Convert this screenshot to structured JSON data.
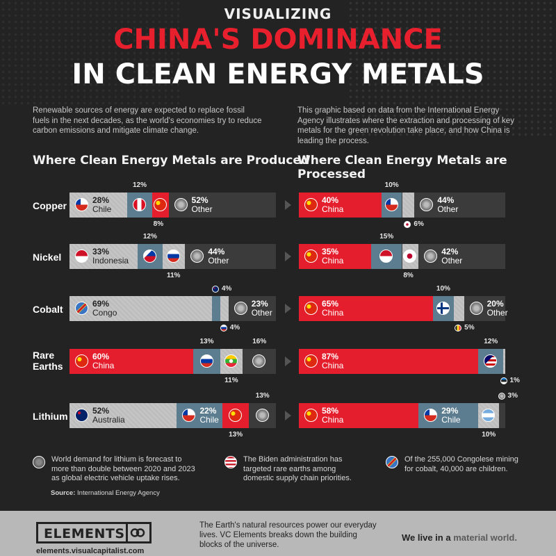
{
  "header": {
    "line1": "VISUALIZING",
    "line2": "CHINA'S DOMINANCE",
    "line3": "IN CLEAN ENERGY METALS"
  },
  "intro": {
    "left": "Renewable sources of energy are expected to replace fossil fuels in the next decades, as the world's economies try to reduce carbon emissions and mitigate climate change.",
    "right": "This graphic based on data from the International Energy Agency illustrates where the extraction and processing of key metals for the green revolution take place, and how China is leading the process."
  },
  "sections": {
    "produced": "Where Clean Energy Metals are Produced",
    "processed": "Where Clean Energy Metals are Processed"
  },
  "chart_data": {
    "type": "bar",
    "unit": "%",
    "categories": [
      "Copper",
      "Nickel",
      "Cobalt",
      "Rare Earths",
      "Lithium"
    ],
    "production": [
      [
        {
          "country": "Chile",
          "share": 28
        },
        {
          "country": "Peru",
          "share": 12
        },
        {
          "country": "China",
          "share": 8
        },
        {
          "country": "Other",
          "share": 52
        }
      ],
      [
        {
          "country": "Indonesia",
          "share": 33
        },
        {
          "country": "Philippines",
          "share": 12
        },
        {
          "country": "Russia",
          "share": 11
        },
        {
          "country": "Other",
          "share": 44
        }
      ],
      [
        {
          "country": "Congo",
          "share": 69
        },
        {
          "country": "Australia",
          "share": 4
        },
        {
          "country": "Russia",
          "share": 4
        },
        {
          "country": "Other",
          "share": 23
        }
      ],
      [
        {
          "country": "China",
          "share": 60
        },
        {
          "country": "Russia",
          "share": 13
        },
        {
          "country": "Myanmar",
          "share": 11
        },
        {
          "country": "Other",
          "share": 16
        }
      ],
      [
        {
          "country": "Australia",
          "share": 52
        },
        {
          "country": "Chile",
          "share": 22
        },
        {
          "country": "China",
          "share": 13
        },
        {
          "country": "Other",
          "share": 13
        }
      ]
    ],
    "processing": [
      [
        {
          "country": "China",
          "share": 40
        },
        {
          "country": "Chile",
          "share": 10
        },
        {
          "country": "Japan",
          "share": 6
        },
        {
          "country": "Other",
          "share": 44
        }
      ],
      [
        {
          "country": "China",
          "share": 35
        },
        {
          "country": "Indonesia",
          "share": 15
        },
        {
          "country": "Japan",
          "share": 8
        },
        {
          "country": "Other",
          "share": 42
        }
      ],
      [
        {
          "country": "China",
          "share": 65
        },
        {
          "country": "Finland",
          "share": 10
        },
        {
          "country": "Belgium",
          "share": 5
        },
        {
          "country": "Other",
          "share": 20
        }
      ],
      [
        {
          "country": "China",
          "share": 87
        },
        {
          "country": "Malaysia",
          "share": 12
        },
        {
          "country": "Estonia",
          "share": 1
        }
      ],
      [
        {
          "country": "China",
          "share": 58
        },
        {
          "country": "Chile",
          "share": 29
        },
        {
          "country": "Argentina",
          "share": 10
        },
        {
          "country": "Other",
          "share": 3
        }
      ]
    ]
  },
  "metal_labels": [
    "Copper",
    "Nickel",
    "Cobalt",
    "Rare\nEarths",
    "Lithium"
  ],
  "colors": {
    "china": "#e41e2c",
    "stone": "#c4c4c4",
    "slate": "#5c7d8f",
    "other": "#454545",
    "background": "#232323"
  },
  "notes": [
    {
      "icon": "globe-icon",
      "text": "World demand for lithium is forecast to more than double between 2020 and 2023 as global electric vehicle uptake rises."
    },
    {
      "icon": "usa-flag-icon",
      "text": "The Biden administration has targeted rare earths among domestic supply chain priorities."
    },
    {
      "icon": "congo-flag-icon",
      "text": "Of the 255,000 Congolese mining for cobalt, 40,000 are children."
    }
  ],
  "source": {
    "label": "Source:",
    "text": "International Energy Agency"
  },
  "footer": {
    "logo": "ELEMENTS",
    "url": "elements.visualcapitalist.com",
    "tagline": "The Earth's natural resources power our everyday lives. VC Elements breaks down the building blocks of the universe.",
    "slogan_a": "We live in a",
    "slogan_b": "material world."
  }
}
